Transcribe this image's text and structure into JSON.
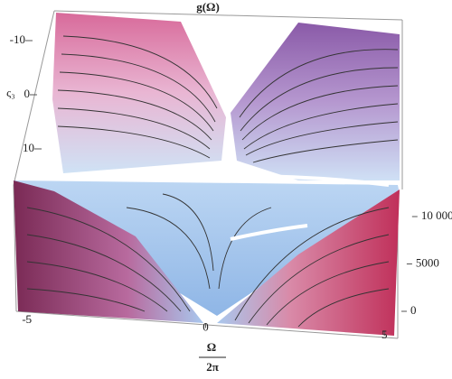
{
  "chart_data": {
    "type": "surface",
    "title": "g(Ω)",
    "x_label": {
      "numerator": "Ω",
      "denominator": "2π"
    },
    "y_label": "ς₃",
    "xlim": [
      -5.5,
      5.5
    ],
    "xticks": [
      -5,
      0,
      5
    ],
    "ylim": [
      -12,
      12
    ],
    "yticks": [
      -10,
      0,
      10
    ],
    "zlim": [
      0,
      11000
    ],
    "zticks": [
      0,
      5000,
      {
        "value": 10000,
        "label": "10 000"
      }
    ]
  }
}
